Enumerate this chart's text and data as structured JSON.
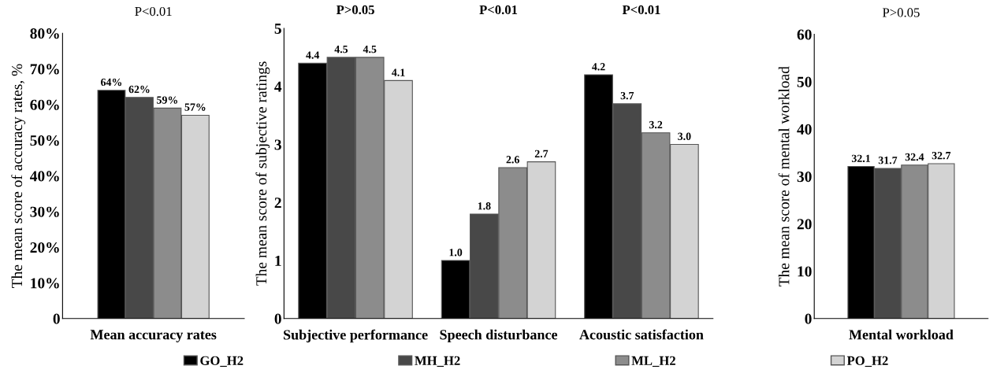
{
  "chart_data": [
    {
      "type": "bar",
      "title": "P<0.01",
      "ylabel": "The mean score of accuracy rates, %",
      "categories": [
        "Mean accuracy rates"
      ],
      "series": [
        {
          "color": "#000000",
          "values": [
            64
          ],
          "value_labels": [
            "64%"
          ]
        },
        {
          "color": "#484848",
          "values": [
            62
          ],
          "value_labels": [
            "62%"
          ]
        },
        {
          "color": "#8c8c8c",
          "values": [
            59
          ],
          "value_labels": [
            "59%"
          ]
        },
        {
          "color": "#d3d3d3",
          "values": [
            57
          ],
          "value_labels": [
            "57%"
          ]
        }
      ],
      "ylim": [
        0,
        80
      ],
      "yticks": [
        0,
        {
          "value": 10,
          "label": "10%"
        },
        {
          "value": 20,
          "label": "20%"
        },
        {
          "value": 30,
          "label": "30%"
        },
        {
          "value": 40,
          "label": "40%"
        },
        {
          "value": 50,
          "label": "50%"
        },
        {
          "value": 60,
          "label": "60%"
        },
        {
          "value": 70,
          "label": "70%"
        },
        {
          "value": 80,
          "label": "80%"
        }
      ]
    },
    {
      "type": "bar",
      "ylabel": "The mean score of subjective ratings",
      "categories": [
        "Subjective performance",
        "Speech disturbance",
        "Acoustic satisfaction"
      ],
      "annotations": [
        "P>0.05",
        "P<0.01",
        "P<0.01"
      ],
      "series": [
        {
          "name": "GO_H2",
          "color": "#000000",
          "values": [
            4.4,
            1.0,
            4.2
          ],
          "value_labels": [
            "4.4",
            "1.0",
            "4.2"
          ]
        },
        {
          "name": "MH_H2",
          "color": "#484848",
          "values": [
            4.5,
            1.8,
            3.7
          ],
          "value_labels": [
            "4.5",
            "1.8",
            "3.7"
          ]
        },
        {
          "name": "ML_H2",
          "color": "#8c8c8c",
          "values": [
            4.5,
            2.6,
            3.2
          ],
          "value_labels": [
            "4.5",
            "2.6",
            "3.2"
          ]
        },
        {
          "name": "PO_H2",
          "color": "#d3d3d3",
          "values": [
            4.1,
            2.7,
            3.0
          ],
          "value_labels": [
            "4.1",
            "2.7",
            "3.0"
          ]
        }
      ],
      "legend": "bottom",
      "ylim": [
        0,
        5
      ],
      "yticks": [
        0,
        1,
        2,
        3,
        4,
        5
      ]
    },
    {
      "type": "bar",
      "title": "P>0.05",
      "ylabel": "The mean score of mental workload",
      "categories": [
        "Mental workload"
      ],
      "series": [
        {
          "color": "#000000",
          "values": [
            32.1
          ]
        },
        {
          "color": "#484848",
          "values": [
            31.7
          ]
        },
        {
          "color": "#8c8c8c",
          "values": [
            32.4
          ]
        },
        {
          "color": "#d3d3d3",
          "values": [
            32.7
          ]
        }
      ],
      "data_labels": true,
      "ylim": [
        0,
        60
      ],
      "yticks": [
        0,
        10,
        20,
        30,
        40,
        50,
        60
      ]
    }
  ]
}
